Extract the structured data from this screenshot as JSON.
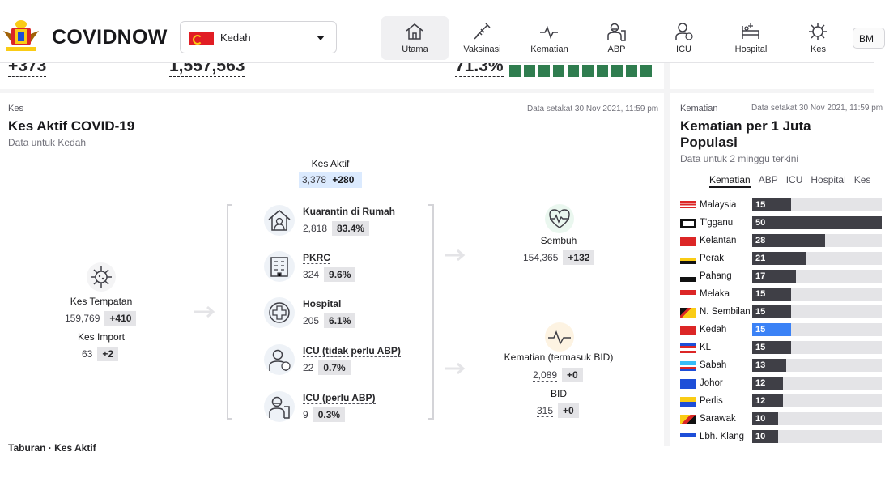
{
  "header": {
    "brand": "COVIDNOW",
    "state_select": {
      "value": "Kedah"
    },
    "nav": [
      {
        "label": "Utama",
        "icon": "home-icon",
        "active": true
      },
      {
        "label": "Vaksinasi",
        "icon": "syringe-icon"
      },
      {
        "label": "Kematian",
        "icon": "pulse-icon"
      },
      {
        "label": "ABP",
        "icon": "ventilator-icon"
      },
      {
        "label": "ICU",
        "icon": "icu-icon"
      },
      {
        "label": "Hospital",
        "icon": "hospital-bed-icon"
      },
      {
        "label": "Kes",
        "icon": "virus-icon"
      }
    ],
    "lang": "BM"
  },
  "top_strip": {
    "a": "+373",
    "b": "1,557,563",
    "c": "71.3%"
  },
  "kes": {
    "kicker": "Kes",
    "title": "Kes Aktif COVID-19",
    "subtitle": "Data untuk Kedah",
    "date": "Data setakat 30 Nov 2021, 11:59 pm",
    "aktif": {
      "label": "Kes Aktif",
      "value": "3,378",
      "delta": "+280"
    },
    "tempatan": {
      "label": "Kes Tempatan",
      "value": "159,769",
      "delta": "+410"
    },
    "import": {
      "label": "Kes Import",
      "value": "63",
      "delta": "+2"
    },
    "items": [
      {
        "name": "Kuarantin di Rumah",
        "value": "2,818",
        "pct": "83.4%",
        "icon": "home-quarantine-icon"
      },
      {
        "name": "PKRC",
        "value": "324",
        "pct": "9.6%",
        "icon": "building-icon"
      },
      {
        "name": "Hospital",
        "value": "205",
        "pct": "6.1%",
        "icon": "medical-cross-icon"
      },
      {
        "name": "ICU (tidak perlu ABP)",
        "value": "22",
        "pct": "0.7%",
        "icon": "icu-patient-icon"
      },
      {
        "name": "ICU (perlu ABP)",
        "value": "9",
        "pct": "0.3%",
        "icon": "ventilator-patient-icon"
      }
    ],
    "sembuh": {
      "label": "Sembuh",
      "value": "154,365",
      "delta": "+132"
    },
    "kematian": {
      "label": "Kematian (termasuk BID)",
      "value": "2,089",
      "delta": "+0"
    },
    "bid": {
      "label": "BID",
      "value": "315",
      "delta": "+0"
    },
    "next_section": "Taburan · Kes Aktif"
  },
  "mortality": {
    "kicker": "Kematian",
    "date": "Data setakat 30 Nov 2021, 11:59 pm",
    "title": "Kematian per 1 Juta Populasi",
    "subtitle": "Data untuk 2 minggu terkini",
    "tabs": [
      "Kematian",
      "ABP",
      "ICU",
      "Hospital",
      "Kes"
    ],
    "active_tab": "Kematian"
  },
  "chart_data": {
    "type": "bar",
    "orientation": "horizontal",
    "categories": [
      "Malaysia",
      "T'gganu",
      "Kelantan",
      "Perak",
      "Pahang",
      "Melaka",
      "N. Sembilan",
      "Kedah",
      "KL",
      "Sabah",
      "Johor",
      "Perlis",
      "Sarawak",
      "Lbh. Klang"
    ],
    "values": [
      15,
      50,
      28,
      21,
      17,
      15,
      15,
      15,
      15,
      13,
      12,
      12,
      10,
      10
    ],
    "highlight": "Kedah",
    "highlight_color": "#3b82f6",
    "bar_color": "#3f3f46",
    "xlim": [
      0,
      50
    ]
  }
}
